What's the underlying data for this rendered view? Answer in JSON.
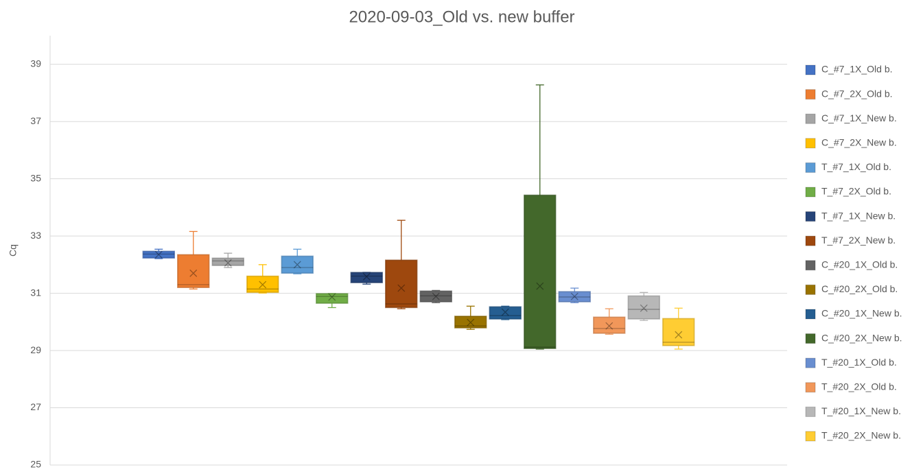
{
  "chart_data": {
    "type": "box",
    "title": "2020-09-03_Old vs. new buffer",
    "ylabel": "Cq",
    "ylim": [
      25,
      40
    ],
    "yticks": [
      25,
      27,
      29,
      31,
      33,
      35,
      37,
      39
    ],
    "grid": true,
    "legend": "right",
    "series": [
      {
        "name": "C_#7_1X_Old b.",
        "color": "#4472c4",
        "min": 32.21,
        "q1": 32.23,
        "median": 32.37,
        "q3": 32.47,
        "max": 32.54,
        "mean": 32.35
      },
      {
        "name": "C_#7_2X_Old b.",
        "color": "#ed7d31",
        "min": 31.15,
        "q1": 31.2,
        "median": 31.3,
        "q3": 32.35,
        "max": 33.16,
        "mean": 31.7
      },
      {
        "name": "C_#7_1X_New b.",
        "color": "#a5a5a5",
        "min": 31.9,
        "q1": 31.97,
        "median": 32.13,
        "q3": 32.23,
        "max": 32.4,
        "mean": 32.06
      },
      {
        "name": "C_#7_2X_New b.",
        "color": "#ffc000",
        "min": 31.01,
        "q1": 31.03,
        "median": 31.15,
        "q3": 31.6,
        "max": 32.0,
        "mean": 31.3
      },
      {
        "name": "T_#7_1X_Old b.",
        "color": "#5b9bd5",
        "min": 31.68,
        "q1": 31.7,
        "median": 31.9,
        "q3": 32.3,
        "max": 32.54,
        "mean": 32.0
      },
      {
        "name": "T_#7_2X_Old b.",
        "color": "#70ad47",
        "min": 30.5,
        "q1": 30.65,
        "median": 30.89,
        "q3": 30.99,
        "max": 30.99,
        "mean": 30.87
      },
      {
        "name": "T_#7_1X_New b.",
        "color": "#264478",
        "min": 31.32,
        "q1": 31.37,
        "median": 31.6,
        "q3": 31.73,
        "max": 31.73,
        "mean": 31.58
      },
      {
        "name": "T_#7_2X_New b.",
        "color": "#9e480e",
        "min": 30.46,
        "q1": 30.5,
        "median": 30.63,
        "q3": 32.16,
        "max": 33.55,
        "mean": 31.18
      },
      {
        "name": "C_#20_1X_Old b.",
        "color": "#636363",
        "min": 30.67,
        "q1": 30.7,
        "median": 30.91,
        "q3": 31.08,
        "max": 31.1,
        "mean": 30.89
      },
      {
        "name": "C_#20_2X_Old b.",
        "color": "#997300",
        "min": 29.74,
        "q1": 29.79,
        "median": 29.86,
        "q3": 30.2,
        "max": 30.55,
        "mean": 29.98
      },
      {
        "name": "C_#20_1X_New b.",
        "color": "#255e91",
        "min": 30.08,
        "q1": 30.1,
        "median": 30.22,
        "q3": 30.53,
        "max": 30.55,
        "mean": 30.34
      },
      {
        "name": "C_#20_2X_New b.",
        "color": "#43682b",
        "min": 29.05,
        "q1": 29.07,
        "median": 29.12,
        "q3": 34.43,
        "max": 38.28,
        "mean": 31.25
      },
      {
        "name": "T_#20_1X_Old b.",
        "color": "#698ed0",
        "min": 30.67,
        "q1": 30.7,
        "median": 30.87,
        "q3": 31.06,
        "max": 31.18,
        "mean": 30.89
      },
      {
        "name": "T_#20_2X_Old b.",
        "color": "#f1975a",
        "min": 29.57,
        "q1": 29.6,
        "median": 29.77,
        "q3": 30.17,
        "max": 30.46,
        "mean": 29.86
      },
      {
        "name": "T_#20_1X_New b.",
        "color": "#b7b7b7",
        "min": 30.05,
        "q1": 30.1,
        "median": 30.44,
        "q3": 30.91,
        "max": 31.03,
        "mean": 30.48
      },
      {
        "name": "T_#20_2X_New b.",
        "color": "#ffcd33",
        "min": 29.05,
        "q1": 29.17,
        "median": 29.29,
        "q3": 30.12,
        "max": 30.48,
        "mean": 29.55
      }
    ]
  }
}
